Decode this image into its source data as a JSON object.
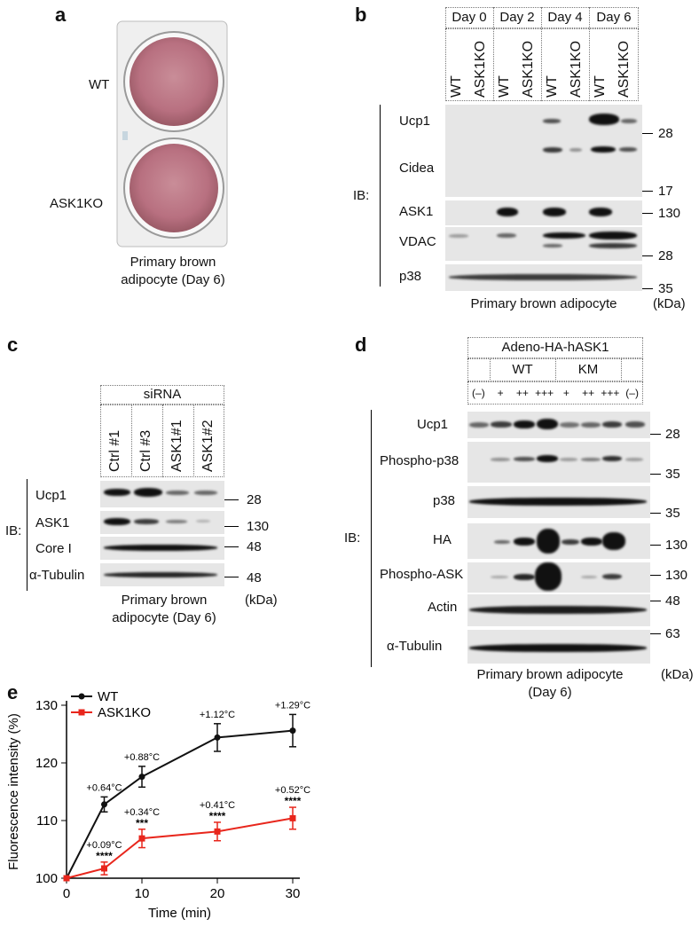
{
  "panels": {
    "a": "a",
    "b": "b",
    "c": "c",
    "d": "d",
    "e": "e"
  },
  "panel_a": {
    "wt": "WT",
    "ko": "ASK1KO",
    "caption1": "Primary brown",
    "caption2": "adipocyte (Day 6)"
  },
  "panel_b": {
    "days": [
      "Day 0",
      "Day 2",
      "Day 4",
      "Day 6"
    ],
    "lanes": [
      "WT",
      "ASK1KO",
      "WT",
      "ASK1KO",
      "WT",
      "ASK1KO",
      "WT",
      "ASK1KO"
    ],
    "ib": "IB:",
    "rows": [
      "Ucp1",
      "Cidea",
      "ASK1",
      "VDAC",
      "p38"
    ],
    "mw": [
      "28",
      "17",
      "130",
      "28",
      "35"
    ],
    "kda": "(kDa)",
    "caption": "Primary brown adipocyte"
  },
  "panel_c": {
    "header": "siRNA",
    "lanes": [
      "Ctrl #1",
      "Ctrl #3",
      "ASK1#1",
      "ASK1#2"
    ],
    "ib": "IB:",
    "rows": [
      "Ucp1",
      "ASK1",
      "Core I",
      "α-Tubulin"
    ],
    "mw": [
      "28",
      "130",
      "48",
      "48"
    ],
    "kda": "(kDa)",
    "caption1": "Primary brown",
    "caption2": "adipocyte (Day 6)"
  },
  "panel_d": {
    "header": "Adeno-HA-hASK1",
    "wt": "WT",
    "km": "KM",
    "doses": [
      "(–)",
      "+",
      "++",
      "+++",
      "+",
      "++",
      "+++",
      "(–)"
    ],
    "ib": "IB:",
    "rows": [
      "Ucp1",
      "Phospho-p38",
      "p38",
      "HA",
      "Phospho-ASK",
      "Actin",
      "α-Tubulin"
    ],
    "mw": [
      "28",
      "35",
      "35",
      "130",
      "130",
      "48",
      "63"
    ],
    "kda": "(kDa)",
    "caption1": "Primary brown adipocyte",
    "caption2": "(Day 6)"
  },
  "chart_data": {
    "type": "line",
    "xlabel": "Time (min)",
    "ylabel": "Fluorescence intensity (%)",
    "xlim": [
      0,
      30
    ],
    "ylim": [
      100,
      130
    ],
    "xticks": [
      0,
      10,
      20,
      30
    ],
    "yticks": [
      100,
      110,
      120,
      130
    ],
    "legend_position": "top-left",
    "series": [
      {
        "name": "WT",
        "color": "#111111",
        "x": [
          0,
          5,
          10,
          20,
          30
        ],
        "y": [
          100,
          112.8,
          117.6,
          124.4,
          125.6
        ],
        "err": [
          0,
          1.3,
          1.8,
          2.4,
          2.8
        ],
        "annotations": [
          "",
          "+0.64°C",
          "+0.88°C",
          "+1.12°C",
          "+1.29°C"
        ]
      },
      {
        "name": "ASK1KO",
        "color": "#e8261c",
        "x": [
          0,
          5,
          10,
          20,
          30
        ],
        "y": [
          100,
          101.7,
          106.9,
          108.1,
          110.4
        ],
        "err": [
          0,
          1.1,
          1.6,
          1.6,
          1.9
        ],
        "annotations": [
          "",
          "+0.09°C",
          "+0.34°C",
          "+0.41°C",
          "+0.52°C"
        ],
        "significance": [
          "",
          "****",
          "***",
          "****",
          "****"
        ]
      }
    ]
  }
}
